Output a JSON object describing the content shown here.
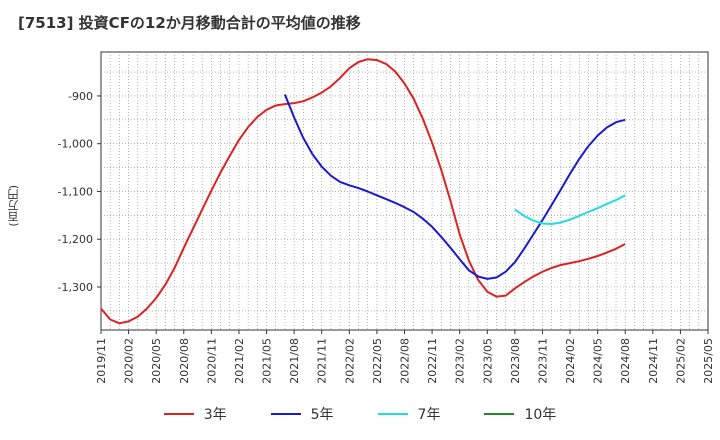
{
  "title": "[7513]  投資CFの12か月移動合計の平均値の推移",
  "y_unit": "(百万円)",
  "chart_data": {
    "type": "line",
    "x_ticks": [
      "2019/11",
      "2020/02",
      "2020/05",
      "2020/08",
      "2020/11",
      "2021/02",
      "2021/05",
      "2021/08",
      "2021/11",
      "2022/02",
      "2022/05",
      "2022/08",
      "2022/11",
      "2023/02",
      "2023/05",
      "2023/08",
      "2023/11",
      "2024/02",
      "2024/05",
      "2024/08",
      "2024/11",
      "2025/02",
      "2025/05"
    ],
    "y_ticks": [
      -900,
      -1000,
      -1100,
      -1200,
      -1300
    ],
    "y_tick_labels": [
      "-900",
      "-1,000",
      "-1,100",
      "-1,200",
      "-1,300"
    ],
    "ylim": [
      -1390,
      -808
    ],
    "grid": true,
    "legend_position": "bottom",
    "series": [
      {
        "name": "3年",
        "color": "#dd2222",
        "points": [
          [
            "2019/11",
            -1345
          ],
          [
            "2019/12",
            -1368
          ],
          [
            "2020/01",
            -1376
          ],
          [
            "2020/02",
            -1372
          ],
          [
            "2020/03",
            -1362
          ],
          [
            "2020/04",
            -1345
          ],
          [
            "2020/05",
            -1323
          ],
          [
            "2020/06",
            -1295
          ],
          [
            "2020/07",
            -1260
          ],
          [
            "2020/08",
            -1218
          ],
          [
            "2020/09",
            -1178
          ],
          [
            "2020/10",
            -1138
          ],
          [
            "2020/11",
            -1098
          ],
          [
            "2020/12",
            -1060
          ],
          [
            "2021/01",
            -1025
          ],
          [
            "2021/02",
            -992
          ],
          [
            "2021/03",
            -965
          ],
          [
            "2021/04",
            -944
          ],
          [
            "2021/05",
            -929
          ],
          [
            "2021/06",
            -920
          ],
          [
            "2021/07",
            -917
          ],
          [
            "2021/08",
            -915
          ],
          [
            "2021/09",
            -911
          ],
          [
            "2021/10",
            -903
          ],
          [
            "2021/11",
            -893
          ],
          [
            "2021/12",
            -880
          ],
          [
            "2022/01",
            -862
          ],
          [
            "2022/02",
            -842
          ],
          [
            "2022/03",
            -829
          ],
          [
            "2022/04",
            -823
          ],
          [
            "2022/05",
            -825
          ],
          [
            "2022/06",
            -833
          ],
          [
            "2022/07",
            -849
          ],
          [
            "2022/08",
            -874
          ],
          [
            "2022/09",
            -906
          ],
          [
            "2022/10",
            -948
          ],
          [
            "2022/11",
            -998
          ],
          [
            "2022/12",
            -1055
          ],
          [
            "2023/01",
            -1120
          ],
          [
            "2023/02",
            -1190
          ],
          [
            "2023/03",
            -1245
          ],
          [
            "2023/04",
            -1285
          ],
          [
            "2023/05",
            -1310
          ],
          [
            "2023/06",
            -1320
          ],
          [
            "2023/07",
            -1318
          ],
          [
            "2023/08",
            -1303
          ],
          [
            "2023/09",
            -1290
          ],
          [
            "2023/10",
            -1278
          ],
          [
            "2023/11",
            -1268
          ],
          [
            "2023/12",
            -1260
          ],
          [
            "2024/01",
            -1254
          ],
          [
            "2024/02",
            -1250
          ],
          [
            "2024/03",
            -1246
          ],
          [
            "2024/04",
            -1241
          ],
          [
            "2024/05",
            -1235
          ],
          [
            "2024/06",
            -1228
          ],
          [
            "2024/07",
            -1220
          ],
          [
            "2024/08",
            -1210
          ]
        ]
      },
      {
        "name": "5年",
        "color": "#1a1ad0",
        "points": [
          [
            "2021/07",
            -897
          ],
          [
            "2021/08",
            -945
          ],
          [
            "2021/09",
            -988
          ],
          [
            "2021/10",
            -1022
          ],
          [
            "2021/11",
            -1048
          ],
          [
            "2021/12",
            -1067
          ],
          [
            "2022/01",
            -1080
          ],
          [
            "2022/02",
            -1087
          ],
          [
            "2022/03",
            -1093
          ],
          [
            "2022/04",
            -1100
          ],
          [
            "2022/05",
            -1108
          ],
          [
            "2022/06",
            -1116
          ],
          [
            "2022/07",
            -1124
          ],
          [
            "2022/08",
            -1133
          ],
          [
            "2022/09",
            -1143
          ],
          [
            "2022/10",
            -1157
          ],
          [
            "2022/11",
            -1174
          ],
          [
            "2022/12",
            -1195
          ],
          [
            "2023/01",
            -1218
          ],
          [
            "2023/02",
            -1242
          ],
          [
            "2023/03",
            -1265
          ],
          [
            "2023/04",
            -1278
          ],
          [
            "2023/05",
            -1283
          ],
          [
            "2023/06",
            -1280
          ],
          [
            "2023/07",
            -1268
          ],
          [
            "2023/08",
            -1248
          ],
          [
            "2023/09",
            -1220
          ],
          [
            "2023/10",
            -1190
          ],
          [
            "2023/11",
            -1160
          ],
          [
            "2023/12",
            -1128
          ],
          [
            "2024/01",
            -1096
          ],
          [
            "2024/02",
            -1063
          ],
          [
            "2024/03",
            -1032
          ],
          [
            "2024/04",
            -1005
          ],
          [
            "2024/05",
            -983
          ],
          [
            "2024/06",
            -966
          ],
          [
            "2024/07",
            -955
          ],
          [
            "2024/08",
            -950
          ]
        ]
      },
      {
        "name": "7年",
        "color": "#22dddd",
        "points": [
          [
            "2023/08",
            -1138
          ],
          [
            "2023/09",
            -1151
          ],
          [
            "2023/10",
            -1161
          ],
          [
            "2023/11",
            -1167
          ],
          [
            "2023/12",
            -1168
          ],
          [
            "2024/01",
            -1165
          ],
          [
            "2024/02",
            -1159
          ],
          [
            "2024/03",
            -1151
          ],
          [
            "2024/04",
            -1143
          ],
          [
            "2024/05",
            -1135
          ],
          [
            "2024/06",
            -1126
          ],
          [
            "2024/07",
            -1118
          ],
          [
            "2024/08",
            -1108
          ]
        ]
      },
      {
        "name": "10年",
        "color": "#228822",
        "points": []
      }
    ]
  }
}
